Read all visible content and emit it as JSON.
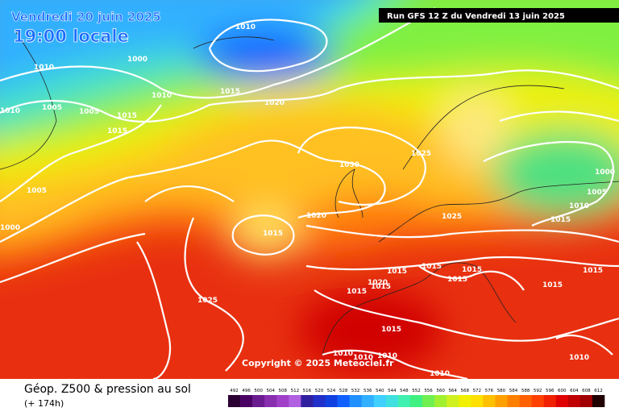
{
  "header": {
    "date": "Vendredi 20 juin 2025",
    "time": "19:00 locale",
    "run": "Run GFS 12 Z du Vendredi 13 juin 2025"
  },
  "map": {
    "copyright": "Copyright © 2025 Meteociel.fr",
    "isobar_labels": [
      1010,
      1000,
      1010,
      1010,
      1015,
      1020,
      1010,
      1005,
      1005,
      1015,
      1015,
      1005,
      1000,
      1030,
      1025,
      1020,
      1015,
      1025,
      1000,
      1005,
      1010,
      1015,
      1015,
      1015,
      1015,
      1015,
      1020,
      1015,
      1015,
      1015,
      1015,
      1025,
      1015,
      1010,
      1010,
      1010,
      1010,
      1010
    ]
  },
  "footer": {
    "title": "Géop. Z500 & pression au sol",
    "lead": "(+ 174h)"
  },
  "colorbar": {
    "ticks": [
      492,
      496,
      500,
      504,
      508,
      512,
      516,
      520,
      524,
      528,
      532,
      536,
      540,
      544,
      548,
      552,
      556,
      560,
      564,
      568,
      572,
      576,
      580,
      584,
      588,
      592,
      596,
      600,
      604,
      608,
      612
    ],
    "colors": [
      "#2a0033",
      "#4b0063",
      "#6a1b8f",
      "#8a2eb0",
      "#a040c8",
      "#b060e0",
      "#3020a0",
      "#2030c8",
      "#1040e0",
      "#1060ff",
      "#2090ff",
      "#30b0ff",
      "#40d0ff",
      "#40e0e0",
      "#40f0b0",
      "#40f080",
      "#70f050",
      "#a0f030",
      "#d0f020",
      "#f0f000",
      "#ffe000",
      "#ffc000",
      "#ffa000",
      "#ff8000",
      "#ff6000",
      "#ff4000",
      "#f02000",
      "#e00000",
      "#c00000",
      "#a00000",
      "#200000"
    ]
  }
}
